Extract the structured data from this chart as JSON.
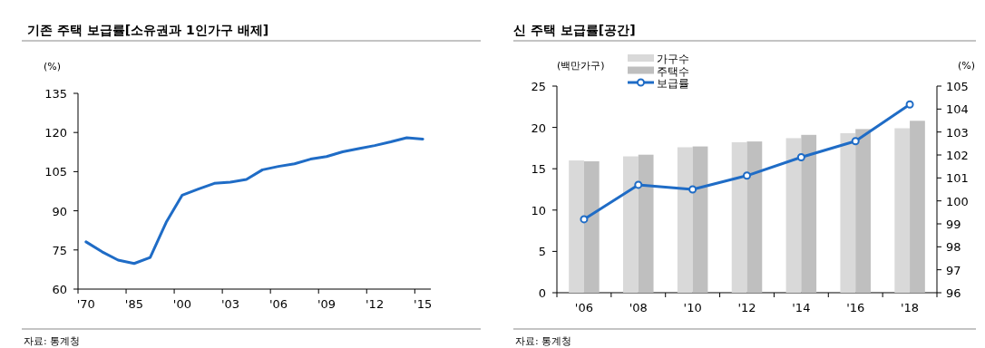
{
  "chart_data": [
    {
      "type": "line",
      "title": "기존 주택 보급률[소유권과 1인가구 배제]",
      "ylabel": "(%)",
      "categories": [
        "'70",
        null,
        null,
        "'85",
        null,
        null,
        "'00",
        null,
        null,
        "'03",
        null,
        null,
        "'06",
        null,
        null,
        "'09",
        null,
        null,
        "'12",
        null,
        null,
        "'15"
      ],
      "series": [
        {
          "color": "#1f6cc6",
          "values": [
            78.1,
            74.3,
            71.1,
            69.8,
            72.1,
            85.6,
            96,
            98.3,
            100.5,
            101,
            102,
            105.7,
            107,
            108,
            109.8,
            110.8,
            112.6,
            113.8,
            115,
            116.4,
            118,
            117.5
          ]
        }
      ],
      "ylim": [
        60,
        135
      ],
      "yticks": [
        60,
        75,
        90,
        105,
        120,
        135
      ],
      "marker": "none",
      "annotations": [
        "자료: 통계청"
      ]
    },
    {
      "type": "bar",
      "title": "신 주택 보급률[공간]",
      "ylabel": "(백만가구)",
      "y2label": "(%)",
      "categories": [
        "'06",
        "'08",
        "'10",
        "'12",
        "'14",
        "'16",
        "'18"
      ],
      "series": [
        {
          "name": "가구수",
          "type": "bar",
          "color": "#d9d9d9",
          "values": [
            16.0,
            16.5,
            17.6,
            18.2,
            18.7,
            19.3,
            19.9
          ]
        },
        {
          "name": "주택수",
          "type": "bar",
          "color": "#bfbfbf",
          "values": [
            15.9,
            16.7,
            17.7,
            18.3,
            19.1,
            19.8,
            20.8
          ]
        },
        {
          "name": "보급률",
          "type": "line",
          "axis": "y2",
          "color": "#1f6cc6",
          "values": [
            99.2,
            100.7,
            100.5,
            101.1,
            101.9,
            102.6,
            104.2
          ]
        }
      ],
      "ylim": [
        0,
        25
      ],
      "yticks": [
        0,
        5,
        10,
        15,
        20,
        25
      ],
      "y2lim": [
        96,
        105
      ],
      "y2ticks": [
        96,
        97,
        98,
        99,
        100,
        101,
        102,
        103,
        104,
        105
      ],
      "marker": "circle",
      "legend": "top left",
      "annotations": [
        "자료: 통계청"
      ]
    }
  ]
}
